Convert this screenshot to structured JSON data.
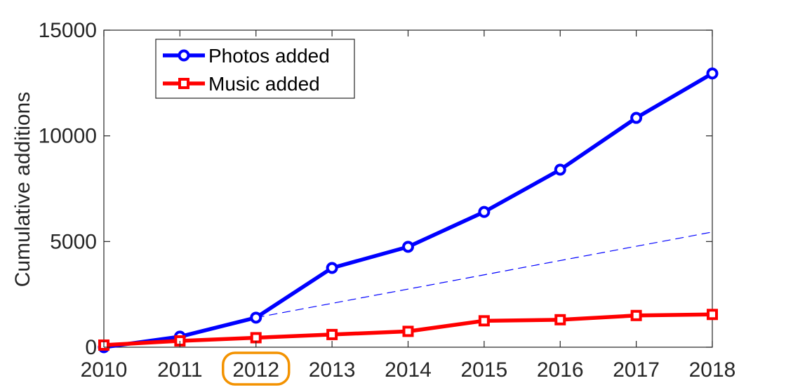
{
  "chart_data": {
    "type": "line",
    "title": "",
    "xlabel": "",
    "ylabel": "Cumulative additions",
    "x": [
      2010,
      2011,
      2012,
      2013,
      2014,
      2015,
      2016,
      2017,
      2018
    ],
    "xlim": [
      2010,
      2018
    ],
    "ylim": [
      0,
      15000
    ],
    "xticks": [
      2010,
      2011,
      2012,
      2013,
      2014,
      2015,
      2016,
      2017,
      2018
    ],
    "yticks": [
      0,
      5000,
      10000,
      15000
    ],
    "grid": false,
    "legend": "top-left",
    "highlighted_tick": 2012,
    "highlight_color": "#f39200",
    "series": [
      {
        "name": "Photos added",
        "color": "#0000ff",
        "marker": "circle",
        "values": [
          0,
          500,
          1400,
          3750,
          4750,
          6400,
          8400,
          10850,
          12950
        ]
      },
      {
        "name": "Music added",
        "color": "#ff0000",
        "marker": "square",
        "values": [
          100,
          300,
          450,
          600,
          750,
          1250,
          1300,
          1500,
          1550
        ]
      }
    ],
    "trend_line": {
      "color": "#0000ff",
      "style": "dashed",
      "from": [
        2012,
        1400
      ],
      "to": [
        2018,
        5450
      ]
    }
  }
}
